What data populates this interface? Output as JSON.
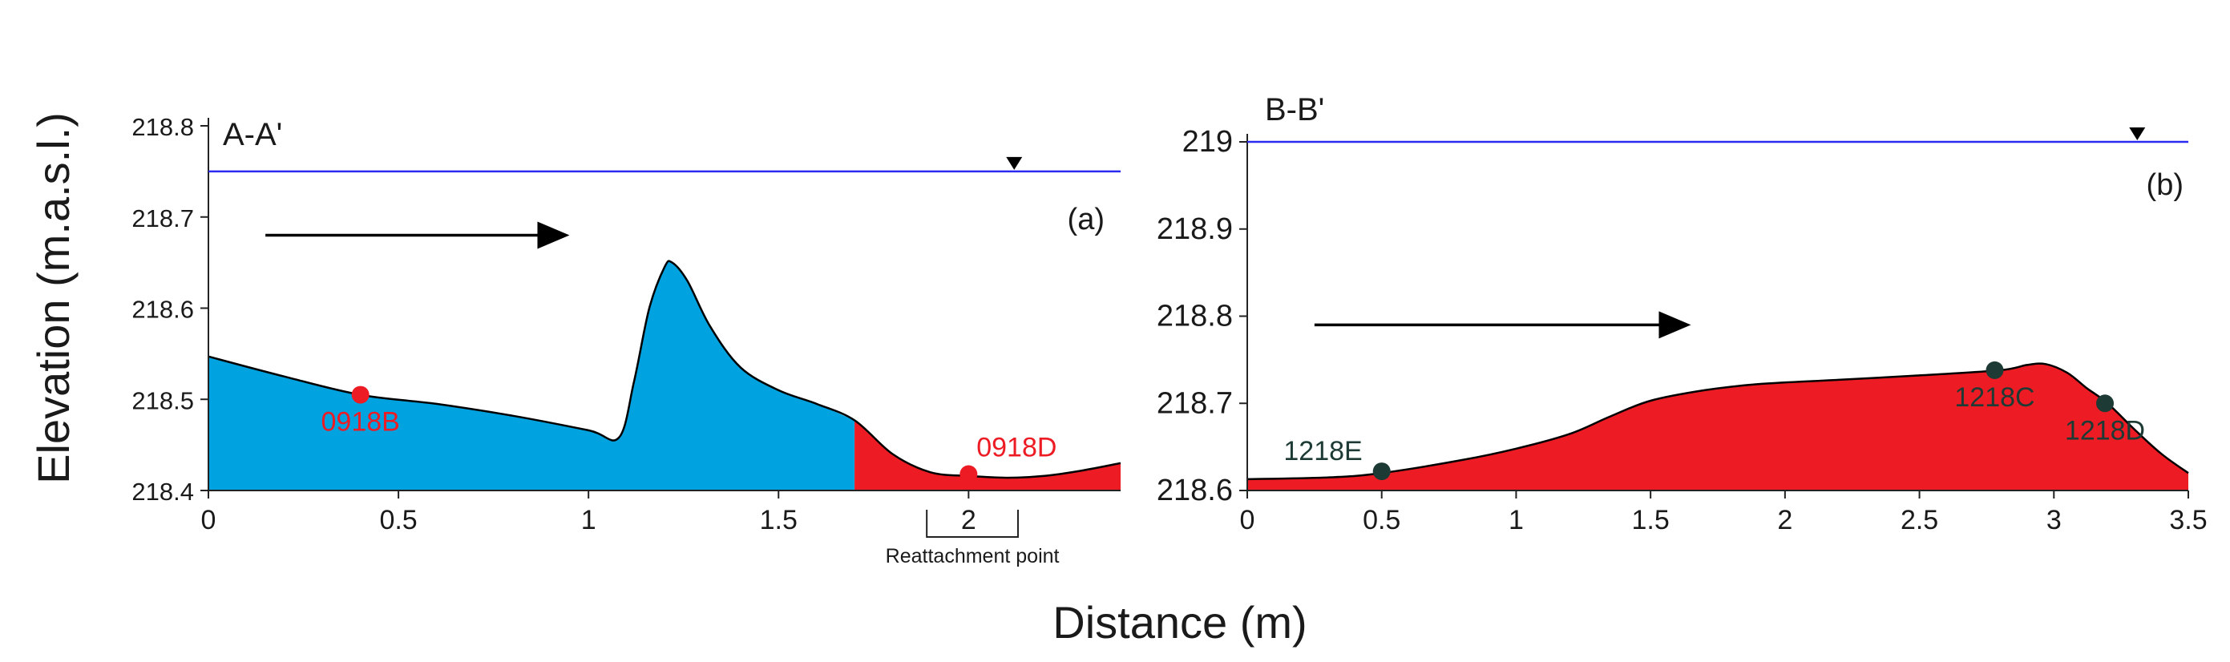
{
  "chart_data": [
    {
      "type": "area",
      "title": "A-A'",
      "panel_label": "(a)",
      "xlim": [
        0,
        2.4
      ],
      "ylim": [
        218.4,
        218.8
      ],
      "x_ticks": [
        {
          "value": 0,
          "label": "0"
        },
        {
          "value": 0.5,
          "label": "0.5"
        },
        {
          "value": 1,
          "label": "1"
        },
        {
          "value": 1.5,
          "label": "1.5"
        },
        {
          "value": 2,
          "label": "2"
        }
      ],
      "y_ticks": [
        {
          "value": 218.4,
          "label": "218.4"
        },
        {
          "value": 218.5,
          "label": "218.5"
        },
        {
          "value": 218.6,
          "label": "218.6"
        },
        {
          "value": 218.7,
          "label": "218.7"
        },
        {
          "value": 218.8,
          "label": "218.8"
        }
      ],
      "water_level": 218.75,
      "water_marker_x": 2.12,
      "flow_arrow": {
        "x_start": 0.15,
        "x_end": 0.95,
        "y": 218.68
      },
      "profile": [
        [
          0.0,
          218.547
        ],
        [
          0.2,
          218.525
        ],
        [
          0.4,
          218.505
        ],
        [
          0.6,
          218.495
        ],
        [
          0.8,
          218.482
        ],
        [
          1.0,
          218.466
        ],
        [
          1.08,
          218.458
        ],
        [
          1.12,
          218.52
        ],
        [
          1.16,
          218.6
        ],
        [
          1.2,
          218.645
        ],
        [
          1.22,
          218.65
        ],
        [
          1.26,
          218.63
        ],
        [
          1.32,
          218.58
        ],
        [
          1.4,
          218.535
        ],
        [
          1.5,
          218.51
        ],
        [
          1.6,
          218.495
        ],
        [
          1.7,
          218.477
        ],
        [
          1.8,
          218.44
        ],
        [
          1.9,
          218.42
        ],
        [
          2.0,
          218.416
        ],
        [
          2.1,
          218.414
        ],
        [
          2.2,
          218.416
        ],
        [
          2.3,
          218.422
        ],
        [
          2.4,
          218.43
        ]
      ],
      "regions": [
        {
          "from": 0,
          "to": 1.7,
          "color": "#00a3e0"
        },
        {
          "from": 1.7,
          "to": 2.4,
          "color": "#ed1c24"
        }
      ],
      "points": [
        {
          "label": "0918B",
          "x": 0.4,
          "y": 218.505,
          "color": "#ed1c24",
          "label_color": "#ed1c24",
          "label_pos": "below"
        },
        {
          "label": "0918D",
          "x": 2.0,
          "y": 218.418,
          "color": "#ed1c24",
          "label_color": "#ed1c24",
          "label_pos": "above"
        }
      ],
      "annotation": {
        "text": "Reattachment point",
        "x_from": 1.89,
        "x_to": 2.13
      }
    },
    {
      "type": "area",
      "title": "B-B'",
      "panel_label": "(b)",
      "xlim": [
        0,
        3.5
      ],
      "ylim": [
        218.6,
        219.0
      ],
      "x_ticks": [
        {
          "value": 0,
          "label": "0"
        },
        {
          "value": 0.5,
          "label": "0.5"
        },
        {
          "value": 1,
          "label": "1"
        },
        {
          "value": 1.5,
          "label": "1.5"
        },
        {
          "value": 2,
          "label": "2"
        },
        {
          "value": 2.5,
          "label": "2.5"
        },
        {
          "value": 3,
          "label": "3"
        },
        {
          "value": 3.5,
          "label": "3.5"
        }
      ],
      "y_ticks": [
        {
          "value": 218.6,
          "label": "218.6"
        },
        {
          "value": 218.7,
          "label": "218.7"
        },
        {
          "value": 218.8,
          "label": "218.8"
        },
        {
          "value": 218.9,
          "label": "218.9"
        },
        {
          "value": 219.0,
          "label": "219"
        }
      ],
      "water_level": 219.0,
      "water_marker_x": 3.31,
      "flow_arrow": {
        "x_start": 0.25,
        "x_end": 1.65,
        "y": 218.79
      },
      "profile": [
        [
          0.0,
          218.613
        ],
        [
          0.3,
          218.615
        ],
        [
          0.5,
          218.62
        ],
        [
          0.8,
          218.635
        ],
        [
          1.0,
          218.648
        ],
        [
          1.2,
          218.665
        ],
        [
          1.35,
          218.685
        ],
        [
          1.5,
          218.703
        ],
        [
          1.7,
          218.715
        ],
        [
          1.9,
          218.722
        ],
        [
          2.2,
          218.727
        ],
        [
          2.5,
          218.732
        ],
        [
          2.8,
          218.738
        ],
        [
          2.9,
          218.744
        ],
        [
          2.97,
          218.745
        ],
        [
          3.05,
          218.735
        ],
        [
          3.12,
          218.718
        ],
        [
          3.2,
          218.7
        ],
        [
          3.3,
          218.67
        ],
        [
          3.4,
          218.642
        ],
        [
          3.5,
          218.62
        ]
      ],
      "regions": [
        {
          "from": 0,
          "to": 3.5,
          "color": "#ed1c24"
        }
      ],
      "points": [
        {
          "label": "1218E",
          "x": 0.5,
          "y": 218.622,
          "color": "#1d3a35",
          "label_color": "#1d3a35",
          "label_pos": "above-left"
        },
        {
          "label": "1218C",
          "x": 2.78,
          "y": 218.738,
          "color": "#1d3a35",
          "label_color": "#1d3a35",
          "label_pos": "below"
        },
        {
          "label": "1218D",
          "x": 3.19,
          "y": 218.7,
          "color": "#1d3a35",
          "label_color": "#1d3a35",
          "label_pos": "below"
        }
      ]
    }
  ],
  "figure": {
    "ylabel": "Elevation (m.a.s.l.)",
    "xlabel": "Distance (m)",
    "water_line_color": "#2a2af0"
  }
}
